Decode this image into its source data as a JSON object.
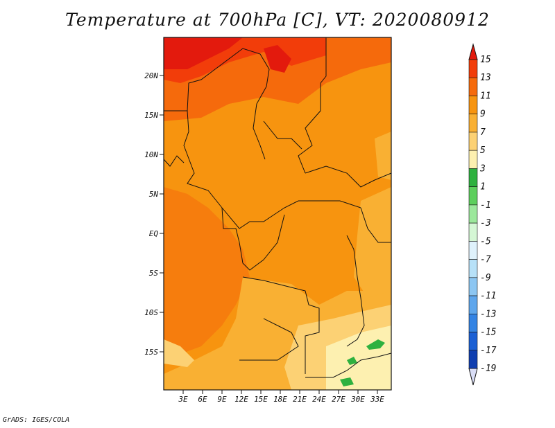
{
  "title": "Temperature at 700hPa [C], VT: 2020080912",
  "credit": "GrADS: IGES/COLA",
  "map": {
    "lat_ticks": [
      "20N",
      "15N",
      "10N",
      "5N",
      "EQ",
      "5S",
      "10S",
      "15S"
    ],
    "lon_ticks": [
      "3E",
      "6E",
      "9E",
      "12E",
      "15E",
      "18E",
      "21E",
      "24E",
      "27E",
      "30E",
      "33E"
    ]
  },
  "colorbar": {
    "labels": [
      "15",
      "13",
      "11",
      "9",
      "7",
      "5",
      "3",
      "1",
      "-1",
      "-3",
      "-5",
      "-7",
      "-9",
      "-11",
      "-13",
      "-15",
      "-17",
      "-19"
    ],
    "colors": [
      "#e31a0d",
      "#f23d0a",
      "#f56a0c",
      "#f7940f",
      "#f9b033",
      "#fcd174",
      "#fdf0b0",
      "#2eb13f",
      "#5dcf5d",
      "#9ce89c",
      "#d5f7d5",
      "#dff2fc",
      "#b7e1f8",
      "#8cc6f2",
      "#5ea6ec",
      "#3383e3",
      "#1a5fd4",
      "#0f3eb0",
      "#0b1f80"
    ]
  }
}
